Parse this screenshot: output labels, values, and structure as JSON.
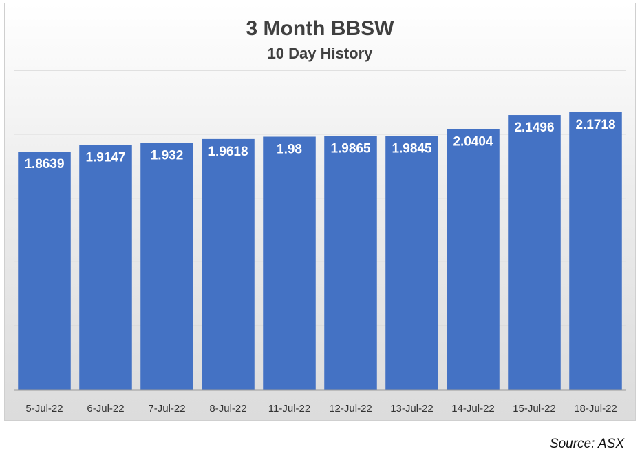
{
  "chart_data": {
    "type": "bar",
    "title": "3 Month BBSW",
    "subtitle": "10 Day History",
    "categories": [
      "5-Jul-22",
      "6-Jul-22",
      "7-Jul-22",
      "8-Jul-22",
      "11-Jul-22",
      "12-Jul-22",
      "13-Jul-22",
      "14-Jul-22",
      "15-Jul-22",
      "18-Jul-22"
    ],
    "values": [
      1.8639,
      1.9147,
      1.932,
      1.9618,
      1.98,
      1.9865,
      1.9845,
      2.0404,
      2.1496,
      2.1718
    ],
    "data_labels": [
      "1.8639",
      "1.9147",
      "1.932",
      "1.9618",
      "1.98",
      "1.9865",
      "1.9845",
      "2.0404",
      "2.1496",
      "2.1718"
    ],
    "ylim": [
      0,
      2.5
    ],
    "grid": true,
    "legend": "none",
    "bar_color": "#4472C4",
    "gridline_color": "#c8c8c8"
  },
  "source_note": "Source: ASX"
}
